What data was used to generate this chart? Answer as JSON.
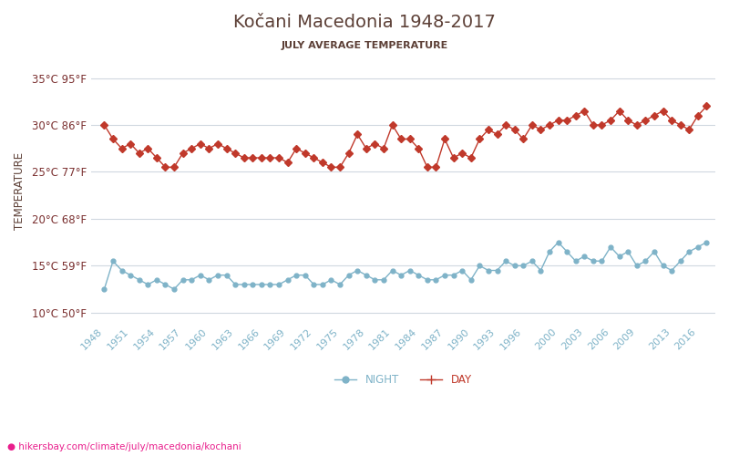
{
  "title": "Kočani Macedonia 1948-2017",
  "subtitle": "JULY AVERAGE TEMPERATURE",
  "ylabel": "TEMPERATURE",
  "footer": "hikersbay.com/climate/july/macedonia/kochani",
  "years": [
    1948,
    1949,
    1950,
    1951,
    1952,
    1953,
    1954,
    1955,
    1956,
    1957,
    1958,
    1959,
    1960,
    1961,
    1962,
    1963,
    1964,
    1965,
    1966,
    1967,
    1968,
    1969,
    1970,
    1971,
    1972,
    1973,
    1974,
    1975,
    1976,
    1977,
    1978,
    1979,
    1980,
    1981,
    1982,
    1983,
    1984,
    1985,
    1986,
    1987,
    1988,
    1989,
    1990,
    1991,
    1992,
    1993,
    1994,
    1995,
    1996,
    1997,
    1998,
    1999,
    2000,
    2001,
    2002,
    2003,
    2004,
    2005,
    2006,
    2007,
    2008,
    2009,
    2010,
    2011,
    2012,
    2013,
    2014,
    2015,
    2016,
    2017
  ],
  "day_temps": [
    30.0,
    28.5,
    27.5,
    28.0,
    27.0,
    27.5,
    26.5,
    25.5,
    25.5,
    27.0,
    27.5,
    28.0,
    27.5,
    28.0,
    27.5,
    27.0,
    26.5,
    26.5,
    26.5,
    26.5,
    26.5,
    26.0,
    27.5,
    27.0,
    26.5,
    26.0,
    25.5,
    25.5,
    27.0,
    29.0,
    27.5,
    28.0,
    27.5,
    30.0,
    28.5,
    28.5,
    27.5,
    25.5,
    25.5,
    28.5,
    26.5,
    27.0,
    26.5,
    28.5,
    29.5,
    29.0,
    30.0,
    29.5,
    28.5,
    30.0,
    29.5,
    30.0,
    30.5,
    30.5,
    31.0,
    31.5,
    30.0,
    30.0,
    30.5,
    31.5,
    30.5,
    30.0,
    30.5,
    31.0,
    31.5,
    30.5,
    30.0,
    29.5,
    31.0,
    32.0
  ],
  "night_temps": [
    12.5,
    15.5,
    14.5,
    14.0,
    13.5,
    13.0,
    13.5,
    13.0,
    12.5,
    13.5,
    13.5,
    14.0,
    13.5,
    14.0,
    14.0,
    13.0,
    13.0,
    13.0,
    13.0,
    13.0,
    13.0,
    13.5,
    14.0,
    14.0,
    13.0,
    13.0,
    13.5,
    13.0,
    14.0,
    14.5,
    14.0,
    13.5,
    13.5,
    14.5,
    14.0,
    14.5,
    14.0,
    13.5,
    13.5,
    14.0,
    14.0,
    14.5,
    13.5,
    15.0,
    14.5,
    14.5,
    15.5,
    15.0,
    15.0,
    15.5,
    14.5,
    16.5,
    17.5,
    16.5,
    15.5,
    16.0,
    15.5,
    15.5,
    17.0,
    16.0,
    16.5,
    15.0,
    15.5,
    16.5,
    15.0,
    14.5,
    15.5,
    16.5,
    17.0,
    17.5
  ],
  "day_color": "#c0392b",
  "night_color": "#7fb3c8",
  "title_color": "#5d4037",
  "subtitle_color": "#5d4037",
  "axis_label_color": "#5d4037",
  "tick_color": "#7fb3c8",
  "ytick_label_color": "#7b3030",
  "xtick_label_color": "#7fb3c8",
  "grid_color": "#d0d8e0",
  "background_color": "#ffffff",
  "ylim": [
    9,
    37
  ],
  "yticks_c": [
    10,
    15,
    20,
    25,
    30,
    35
  ],
  "ytick_labels": [
    "10°C 50°F",
    "15°C 59°F",
    "20°C 68°F",
    "25°C 77°F",
    "30°C 86°F",
    "35°C 95°F"
  ],
  "xtick_years": [
    1948,
    1951,
    1954,
    1957,
    1960,
    1963,
    1966,
    1969,
    1972,
    1975,
    1978,
    1981,
    1984,
    1987,
    1990,
    1993,
    1996,
    2000,
    2003,
    2006,
    2009,
    2013,
    2016
  ],
  "legend_night": "NIGHT",
  "legend_day": "DAY",
  "footer_color": "#e91e8c",
  "marker_size": 4
}
